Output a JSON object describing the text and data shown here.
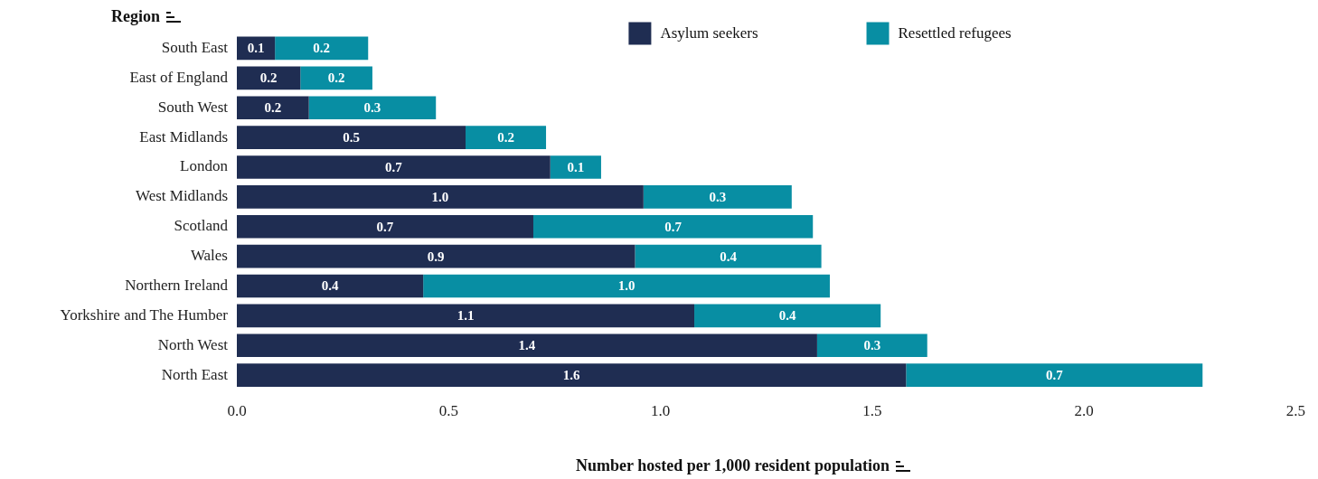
{
  "chart_data": {
    "type": "bar",
    "orientation": "horizontal",
    "stacked": true,
    "xlabel": "Number hosted per 1,000 resident population",
    "ylabel": "Region",
    "categories": [
      "South East",
      "East of England",
      "South West",
      "East Midlands",
      "London",
      "West Midlands",
      "Scotland",
      "Wales",
      "Northern Ireland",
      "Yorkshire and The Humber",
      "North West",
      "North East"
    ],
    "series": [
      {
        "name": "Asylum seekers",
        "color": "#1f2d52",
        "values": [
          0.09,
          0.15,
          0.17,
          0.54,
          0.74,
          0.96,
          0.7,
          0.94,
          0.44,
          1.08,
          1.37,
          1.58
        ],
        "value_labels": [
          "0.1",
          "0.2",
          "0.2",
          "0.5",
          "0.7",
          "1.0",
          "0.7",
          "0.9",
          "0.4",
          "1.1",
          "1.4",
          "1.6"
        ]
      },
      {
        "name": "Resettled refugees",
        "color": "#088ea3",
        "values": [
          0.22,
          0.17,
          0.3,
          0.19,
          0.12,
          0.35,
          0.66,
          0.44,
          0.96,
          0.44,
          0.26,
          0.7
        ],
        "value_labels": [
          "0.2",
          "0.2",
          "0.3",
          "0.2",
          "0.1",
          "0.3",
          "0.7",
          "0.4",
          "1.0",
          "0.4",
          "0.3",
          "0.7"
        ]
      }
    ],
    "xlim": [
      0,
      2.5
    ],
    "xticks": [
      {
        "value": 0,
        "label": "0.0"
      },
      {
        "value": 0.5,
        "label": "0.5"
      },
      {
        "value": 1,
        "label": "1.0"
      },
      {
        "value": 1.5,
        "label": "1.5"
      },
      {
        "value": 2,
        "label": "2.0"
      },
      {
        "value": 2.5,
        "label": "2.5"
      }
    ],
    "grid": false,
    "legend": "top"
  }
}
